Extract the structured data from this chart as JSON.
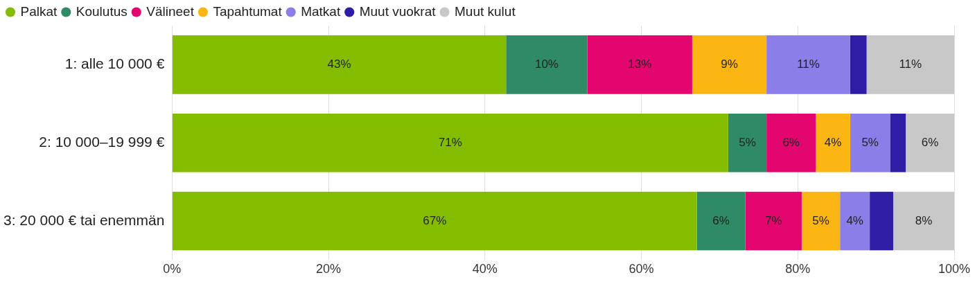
{
  "chart_data": {
    "type": "bar",
    "orientation": "horizontal",
    "stacked": true,
    "categories": [
      "1: alle 10 000 €",
      "2: 10 000–19 999 €",
      "3: 20 000 € tai enemmän"
    ],
    "series": [
      {
        "name": "Palkat",
        "color": "#84bd00",
        "values": [
          42.7,
          71.1,
          67.1
        ],
        "value_labels": [
          "43%",
          "71%",
          "67%"
        ]
      },
      {
        "name": "Koulutus",
        "color": "#2e8b66",
        "values": [
          10.4,
          4.9,
          6.2
        ],
        "value_labels": [
          "10%",
          "5%",
          "6%"
        ]
      },
      {
        "name": "Välineet",
        "color": "#e3066e",
        "values": [
          13.4,
          6.3,
          7.2
        ],
        "value_labels": [
          "13%",
          "6%",
          "7%"
        ]
      },
      {
        "name": "Tapahtumat",
        "color": "#fbb614",
        "values": [
          9.5,
          4.4,
          4.9
        ],
        "value_labels": [
          "9%",
          "4%",
          "5%"
        ]
      },
      {
        "name": "Matkat",
        "color": "#8b7ee8",
        "values": [
          10.7,
          5.1,
          3.8
        ],
        "value_labels": [
          "11%",
          "5%",
          "4%"
        ]
      },
      {
        "name": "Muut vuokrat",
        "color": "#2e1ea6",
        "values": [
          2.1,
          2.0,
          3.0
        ],
        "value_labels": [
          null,
          null,
          null
        ]
      },
      {
        "name": "Muut kulut",
        "color": "#c8c8c8",
        "values": [
          11.2,
          6.2,
          7.8
        ],
        "value_labels": [
          "11%",
          "6%",
          "8%"
        ]
      }
    ],
    "xlim": [
      0,
      100
    ],
    "xticks": [
      {
        "value": 0,
        "label": "0%"
      },
      {
        "value": 20,
        "label": "20%"
      },
      {
        "value": 40,
        "label": "40%"
      },
      {
        "value": 60,
        "label": "60%"
      },
      {
        "value": 80,
        "label": "80%"
      },
      {
        "value": 100,
        "label": "100%"
      }
    ],
    "grid": "x",
    "legend": "top left"
  }
}
